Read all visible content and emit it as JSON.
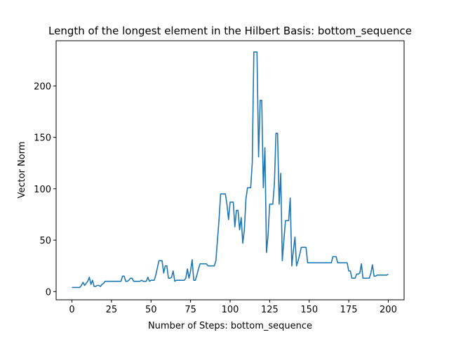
{
  "chart_data": {
    "type": "line",
    "title": "Length of the longest element in the Hilbert Basis: bottom_sequence",
    "xlabel": "Number of Steps: bottom_sequence",
    "ylabel": "Vector Norm",
    "xlim": [
      -10,
      210
    ],
    "ylim": [
      -8,
      244
    ],
    "xticks": [
      0,
      25,
      50,
      75,
      100,
      125,
      150,
      175,
      200
    ],
    "yticks": [
      0,
      50,
      100,
      150,
      200
    ],
    "grid": false,
    "legend": "none",
    "series": [
      {
        "color": "#1f77b4",
        "x": [
          0,
          1,
          2,
          3,
          4,
          5,
          6,
          7,
          8,
          9,
          10,
          11,
          12,
          13,
          14,
          15,
          16,
          17,
          18,
          19,
          20,
          21,
          22,
          23,
          24,
          25,
          26,
          27,
          28,
          29,
          30,
          31,
          32,
          33,
          34,
          35,
          36,
          37,
          38,
          39,
          40,
          41,
          42,
          43,
          44,
          45,
          46,
          47,
          48,
          49,
          50,
          51,
          52,
          53,
          54,
          55,
          56,
          57,
          58,
          59,
          60,
          61,
          62,
          63,
          64,
          65,
          66,
          67,
          68,
          69,
          70,
          71,
          72,
          73,
          74,
          75,
          76,
          77,
          78,
          79,
          80,
          81,
          82,
          83,
          84,
          85,
          86,
          87,
          88,
          89,
          90,
          91,
          92,
          93,
          94,
          95,
          96,
          97,
          98,
          99,
          100,
          101,
          102,
          103,
          104,
          105,
          106,
          107,
          108,
          109,
          110,
          111,
          112,
          113,
          114,
          115,
          116,
          117,
          118,
          119,
          120,
          121,
          122,
          123,
          124,
          125,
          126,
          127,
          128,
          129,
          130,
          131,
          132,
          133,
          134,
          135,
          136,
          137,
          138,
          139,
          140,
          141,
          142,
          143,
          144,
          145,
          146,
          147,
          148,
          149,
          150,
          151,
          152,
          153,
          154,
          155,
          156,
          157,
          158,
          159,
          160,
          161,
          162,
          163,
          164,
          165,
          166,
          167,
          168,
          169,
          170,
          171,
          172,
          173,
          174,
          175,
          176,
          177,
          178,
          179,
          180,
          181,
          182,
          183,
          184,
          185,
          186,
          187,
          188,
          189,
          190,
          191,
          192,
          193,
          194,
          195,
          196,
          197,
          198,
          199,
          200
        ],
        "y": [
          4,
          4,
          4,
          4,
          4,
          4,
          6,
          9,
          6,
          8,
          10,
          14,
          7,
          11,
          5,
          5,
          6,
          6,
          5,
          7,
          8,
          10,
          10,
          10,
          10,
          10,
          10,
          10,
          10,
          10,
          10,
          10,
          15,
          15,
          10,
          10,
          11,
          13,
          13,
          10,
          10,
          10,
          10,
          10,
          11,
          10,
          10,
          10,
          14,
          10,
          11,
          11,
          11,
          16,
          23,
          30,
          30,
          30,
          18,
          25,
          25,
          13,
          13,
          14,
          20,
          10,
          11,
          11,
          11,
          11,
          11,
          11,
          13,
          22,
          13,
          20,
          31,
          11,
          11,
          16,
          22,
          27,
          27,
          27,
          27,
          27,
          25,
          25,
          25,
          25,
          25,
          30,
          50,
          70,
          95,
          95,
          95,
          95,
          85,
          70,
          87,
          87,
          87,
          63,
          79,
          79,
          60,
          72,
          47,
          60,
          90,
          101,
          101,
          101,
          125,
          233,
          233,
          233,
          131,
          186,
          186,
          101,
          140,
          38,
          55,
          85,
          85,
          85,
          105,
          154,
          154,
          85,
          115,
          30,
          50,
          69,
          69,
          69,
          91,
          25,
          40,
          53,
          25,
          30,
          36,
          43,
          43,
          43,
          43,
          28,
          28,
          28,
          28,
          28,
          28,
          28,
          28,
          28,
          28,
          28,
          28,
          28,
          28,
          28,
          28,
          34,
          34,
          34,
          28,
          28,
          28,
          28,
          28,
          28,
          28,
          20,
          20,
          13,
          13,
          13,
          17,
          17,
          18,
          27,
          13,
          13,
          13,
          13,
          13,
          18,
          26,
          15,
          15,
          16,
          16,
          16,
          16,
          16,
          16,
          16,
          17
        ]
      }
    ]
  }
}
